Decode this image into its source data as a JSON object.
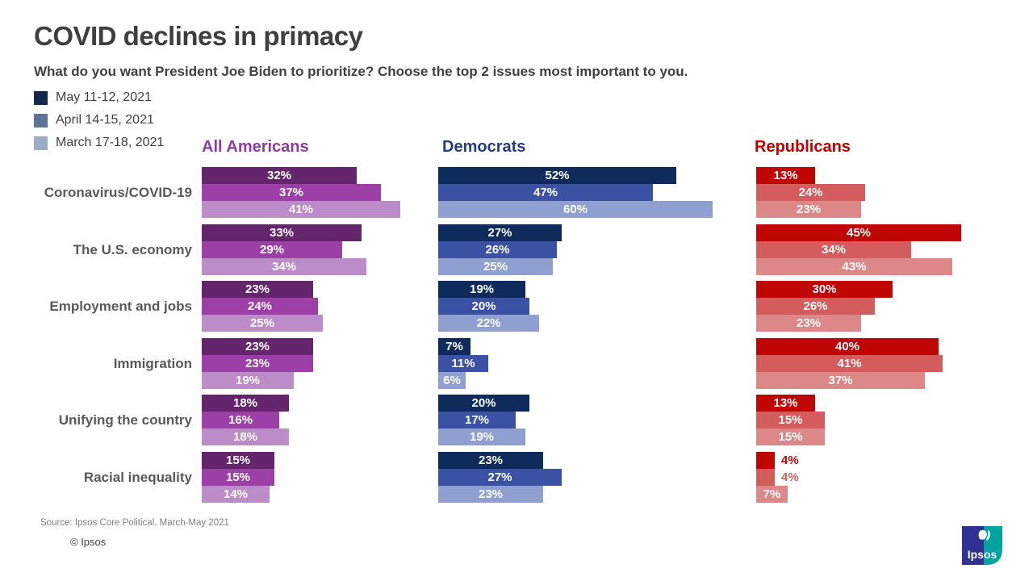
{
  "title": "COVID declines in primacy",
  "subtitle": "What do you want President Joe Biden to prioritize? Choose the top 2 issues most important to you.",
  "legend": [
    {
      "label": "May 11-12, 2021",
      "color": "#13294B"
    },
    {
      "label": "April 14-15, 2021",
      "color": "#5C7495"
    },
    {
      "label": "March 17-18, 2021",
      "color": "#9DAEC4"
    }
  ],
  "source": "Source: Ipsos Core Political, March-May 2021",
  "copyright": "© Ipsos",
  "logo": {
    "text": "Ipsos",
    "navy": "#2F3292",
    "teal": "#00A39E"
  },
  "chart_data": {
    "type": "bar",
    "orientation": "horizontal",
    "value_suffix": "%",
    "categories": [
      "Coronavirus/COVID-19",
      "The U.S. economy",
      "Employment and jobs",
      "Immigration",
      "Unifying the country",
      "Racial inequality"
    ],
    "series_labels": [
      "May 11-12, 2021",
      "April 14-15, 2021",
      "March 17-18, 2021"
    ],
    "groups": [
      {
        "name": "All Americans",
        "header_color": "#8C3DA0",
        "bar_colors": [
          "#65256D",
          "#9C3FA6",
          "#BC8CC9"
        ],
        "series": [
          {
            "name": "May 11-12, 2021",
            "values": [
              32,
              33,
              23,
              23,
              18,
              15
            ]
          },
          {
            "name": "April 14-15, 2021",
            "values": [
              37,
              29,
              24,
              23,
              16,
              15
            ]
          },
          {
            "name": "March 17-18, 2021",
            "values": [
              41,
              34,
              25,
              19,
              18,
              14
            ]
          }
        ]
      },
      {
        "name": "Democrats",
        "header_color": "#263C7E",
        "bar_colors": [
          "#0F2B5B",
          "#3B51A3",
          "#8E9FD0"
        ],
        "series": [
          {
            "name": "May 11-12, 2021",
            "values": [
              52,
              27,
              19,
              7,
              20,
              23
            ]
          },
          {
            "name": "April 14-15, 2021",
            "values": [
              47,
              26,
              20,
              11,
              17,
              27
            ]
          },
          {
            "name": "March 17-18, 2021",
            "values": [
              60,
              25,
              22,
              6,
              19,
              23
            ]
          }
        ]
      },
      {
        "name": "Republicans",
        "header_color": "#C00000",
        "bar_colors": [
          "#C00505",
          "#D45C5C",
          "#DD8888"
        ],
        "series": [
          {
            "name": "May 11-12, 2021",
            "values": [
              13,
              45,
              30,
              40,
              13,
              4
            ]
          },
          {
            "name": "April 14-15, 2021",
            "values": [
              24,
              34,
              26,
              41,
              15,
              4
            ]
          },
          {
            "name": "March 17-18, 2021",
            "values": [
              23,
              43,
              23,
              37,
              15,
              7
            ]
          }
        ]
      }
    ]
  }
}
